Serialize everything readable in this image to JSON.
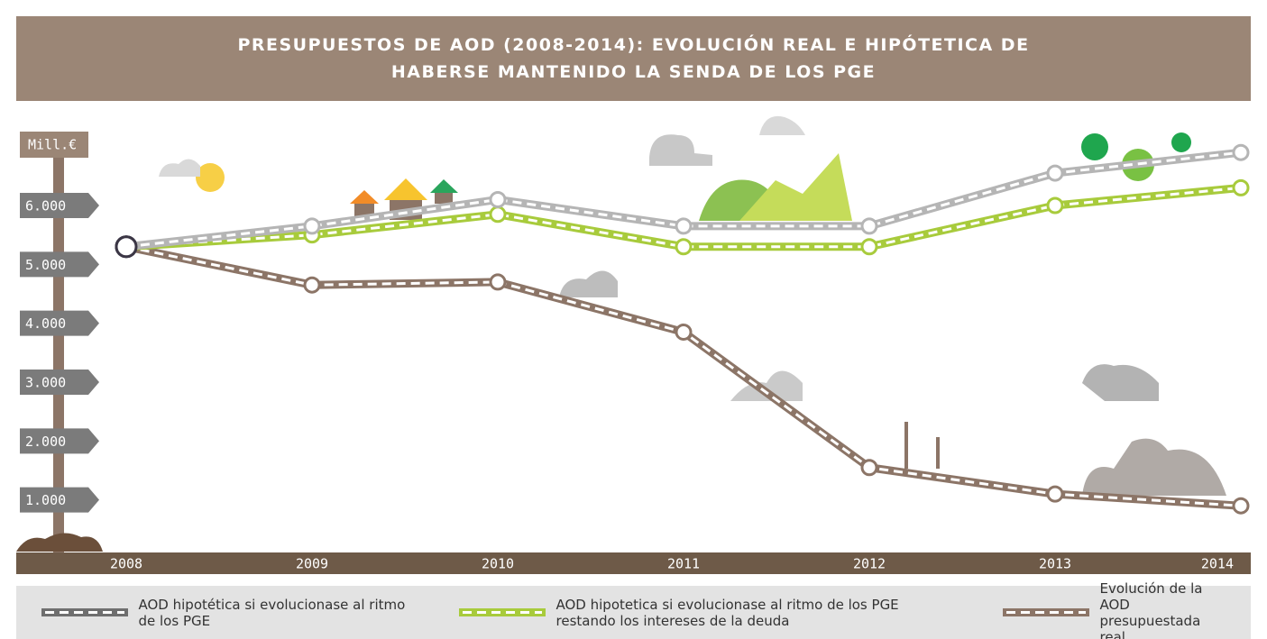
{
  "chart_data": {
    "type": "line",
    "title": "PRESUPUESTOS DE AOD (2008-2014): EVOLUCIÓN REAL E HIPÓTETICA DE HABERSE MANTENIDO LA SENDA DE LOS PGE",
    "y_label": "Mill.€",
    "categories": [
      "2008",
      "2009",
      "2010",
      "2011",
      "2012",
      "2013",
      "2014"
    ],
    "series": [
      {
        "name": "AOD hipotética si evolucionase al ritmo de los PGE",
        "color": "#b5b5b5",
        "values": [
          5300,
          5650,
          6100,
          5650,
          5650,
          6550,
          6900
        ]
      },
      {
        "name": "AOD hipotetica si evolucionase al ritmo de los PGE restando los intereses de la deuda",
        "color": "#a8cb3c",
        "values": [
          5300,
          5500,
          5850,
          5300,
          5300,
          6000,
          6300
        ]
      },
      {
        "name": "Evolución de la AOD presupuestada real",
        "color": "#8c7567",
        "values": [
          5300,
          4650,
          4700,
          3850,
          1550,
          1100,
          900
        ]
      }
    ],
    "ylim": [
      0,
      7500
    ],
    "yticks": [
      {
        "value": 1000,
        "label": "1.000"
      },
      {
        "value": 2000,
        "label": "2.000"
      },
      {
        "value": 3000,
        "label": "3.000"
      },
      {
        "value": 4000,
        "label": "4.000"
      },
      {
        "value": 5000,
        "label": "5.000"
      },
      {
        "value": 6000,
        "label": "6.000"
      }
    ]
  }
}
